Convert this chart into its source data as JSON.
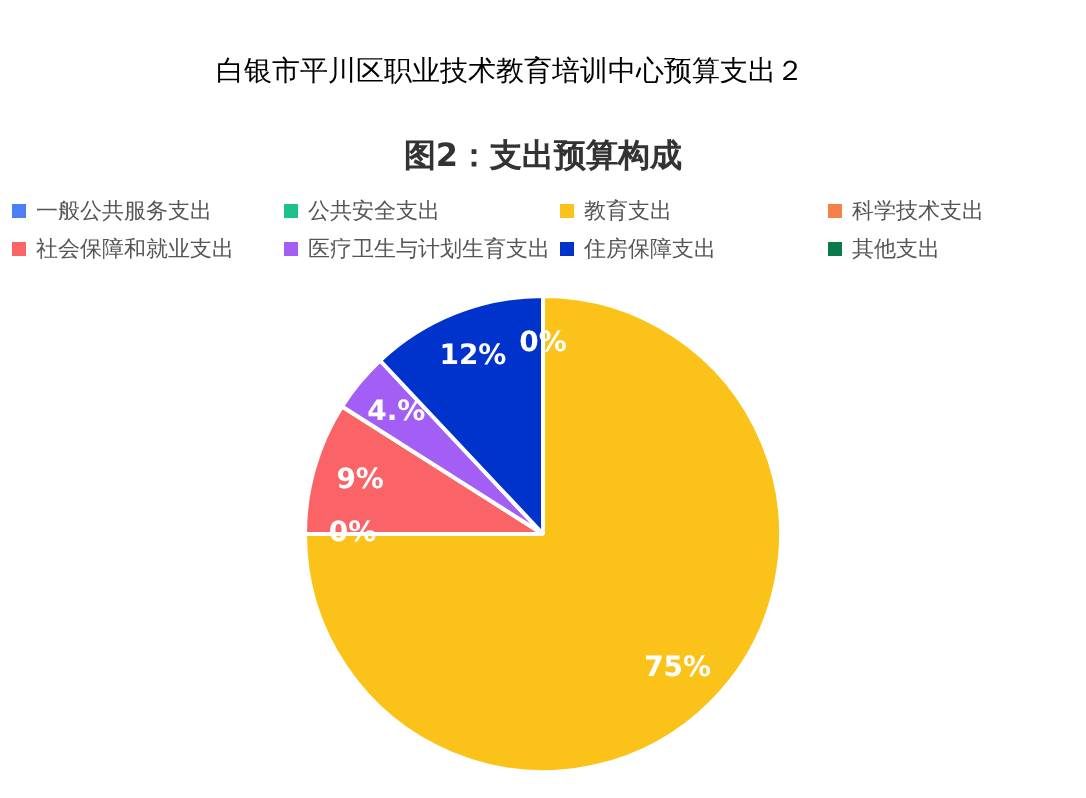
{
  "chart_data": {
    "type": "pie",
    "title": "白银市平川区职业技术教育培训中心预算支出２",
    "subtitle": "图2：支出预算构成",
    "categories": [
      "一般公共服务支出",
      "公共安全支出",
      "教育支出",
      "科学技术支出",
      "社会保障和就业支出",
      "医疗卫生与计划生育支出",
      "住房保障支出",
      "其他支出"
    ],
    "values": [
      0,
      0,
      75,
      0,
      9,
      4,
      12,
      0
    ],
    "colors": [
      "#4e7ef5",
      "#1dc28a",
      "#fbc31a",
      "#f5804b",
      "#fb6467",
      "#a25ef5",
      "#0033cc",
      "#0b7a4a"
    ],
    "value_labels": [
      "0%",
      null,
      "75%",
      "0%",
      "9%",
      "4.%",
      "12%",
      null
    ],
    "legend": "top"
  }
}
